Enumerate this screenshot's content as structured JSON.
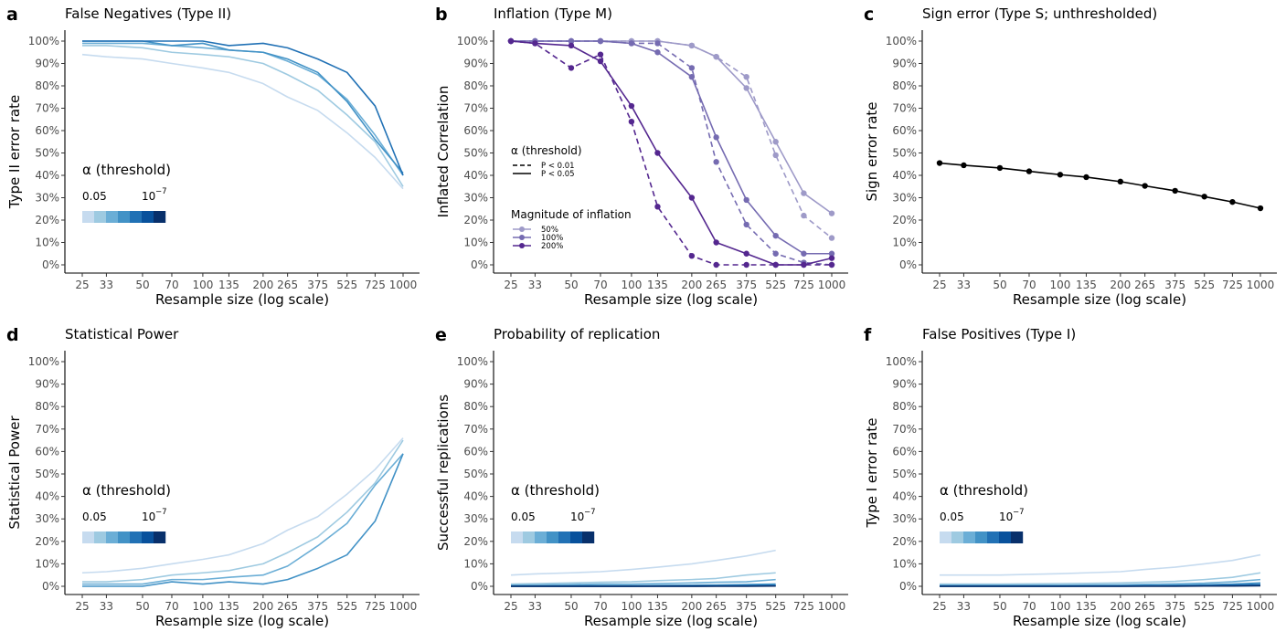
{
  "chart_data": [
    {
      "letter": "a",
      "type": "line",
      "title": "False Negatives (Type II)",
      "xlabel": "Resample size (log scale)",
      "ylabel": "Type II error rate",
      "x": [
        25,
        33,
        50,
        70,
        100,
        135,
        200,
        265,
        375,
        525,
        725,
        1000
      ],
      "x_scale": "log",
      "ylim": [
        0,
        100
      ],
      "ytick_labels": [
        "0%",
        "10%",
        "20%",
        "30%",
        "40%",
        "50%",
        "60%",
        "70%",
        "80%",
        "90%",
        "100%"
      ],
      "grid": false,
      "legend": {
        "kind": "alpha",
        "title": "α (threshold)",
        "left_label": "0.05",
        "right_label": "10",
        "right_exp": "−7",
        "placement": "lower-left"
      },
      "series": [
        {
          "color": "#c6dbef",
          "values": [
            94,
            93,
            92,
            90,
            88,
            86,
            81,
            75,
            69,
            59,
            48,
            34
          ]
        },
        {
          "color": "#9ecae1",
          "values": [
            98,
            98,
            97,
            95,
            94,
            93,
            90,
            85,
            78,
            67,
            55,
            35
          ]
        },
        {
          "color": "#6baed6",
          "values": [
            99,
            99,
            99,
            98,
            97,
            96,
            95,
            91,
            85,
            74,
            58,
            40
          ]
        },
        {
          "color": "#4292c6",
          "values": [
            100,
            100,
            100,
            98,
            99,
            96,
            95,
            92,
            86,
            73,
            56,
            41
          ]
        },
        {
          "color": "#2171b5",
          "values": [
            100,
            100,
            100,
            100,
            100,
            98,
            99,
            97,
            92,
            86,
            71,
            40
          ]
        }
      ]
    },
    {
      "letter": "b",
      "type": "line",
      "title": "Inflation (Type M)",
      "xlabel": "Resample size (log scale)",
      "ylabel": "Inflated Correlation",
      "x": [
        25,
        33,
        50,
        70,
        100,
        135,
        200,
        265,
        375,
        525,
        725,
        1000
      ],
      "x_scale": "log",
      "ylim": [
        0,
        100
      ],
      "ytick_labels": [
        "0%",
        "10%",
        "20%",
        "30%",
        "40%",
        "50%",
        "60%",
        "70%",
        "80%",
        "90%",
        "100%"
      ],
      "grid": false,
      "legend": {
        "kind": "inflation",
        "threshold_title": "α (threshold)",
        "threshold_items": [
          "P < 0.01",
          "P < 0.05"
        ],
        "magnitude_title": "Magnitude of inflation",
        "magnitude_items": [
          "50%",
          "100%",
          "200%"
        ]
      },
      "series": [
        {
          "name": "50%",
          "dash": "P < 0.05",
          "color": "#9e9ac8",
          "values": [
            100,
            100,
            100,
            100,
            100,
            100,
            98,
            93,
            79,
            55,
            32,
            23
          ]
        },
        {
          "name": "50%",
          "dash": "P < 0.01",
          "color": "#9e9ac8",
          "values": [
            100,
            100,
            100,
            100,
            100,
            100,
            98,
            93,
            84,
            49,
            22,
            12
          ]
        },
        {
          "name": "100%",
          "dash": "P < 0.05",
          "color": "#756bb1",
          "values": [
            100,
            100,
            100,
            100,
            99,
            95,
            84,
            57,
            29,
            13,
            5,
            5
          ]
        },
        {
          "name": "100%",
          "dash": "P < 0.01",
          "color": "#756bb1",
          "values": [
            100,
            100,
            100,
            100,
            99,
            99,
            88,
            46,
            18,
            5,
            1,
            0
          ]
        },
        {
          "name": "200%",
          "dash": "P < 0.05",
          "color": "#54278f",
          "values": [
            100,
            99,
            98,
            91,
            71,
            50,
            30,
            10,
            5,
            0,
            0,
            3
          ]
        },
        {
          "name": "200%",
          "dash": "P < 0.01",
          "color": "#54278f",
          "values": [
            100,
            99,
            88,
            94,
            64,
            26,
            4,
            0,
            0,
            0,
            0,
            0
          ]
        }
      ]
    },
    {
      "letter": "c",
      "type": "line",
      "title": "Sign error (Type S; unthresholded)",
      "xlabel": "Resample size (log scale)",
      "ylabel": "Sign error rate",
      "x": [
        25,
        33,
        50,
        70,
        100,
        135,
        200,
        265,
        375,
        525,
        725,
        1000
      ],
      "x_scale": "log",
      "ylim": [
        0,
        100
      ],
      "ytick_labels": [
        "0%",
        "10%",
        "20%",
        "30%",
        "40%",
        "50%",
        "60%",
        "70%",
        "80%",
        "90%",
        "100%"
      ],
      "grid": false,
      "series": [
        {
          "color": "#000000",
          "markers": true,
          "values": [
            45.5,
            44.5,
            43.3,
            41.8,
            40.3,
            39.2,
            37.2,
            35.3,
            33.1,
            30.5,
            28.1,
            25.3
          ]
        }
      ]
    },
    {
      "letter": "d",
      "type": "line",
      "title": "Statistical Power",
      "xlabel": "Resample size (log scale)",
      "ylabel": "Statistical Power",
      "x": [
        25,
        33,
        50,
        70,
        100,
        135,
        200,
        265,
        375,
        525,
        725,
        1000
      ],
      "x_scale": "log",
      "ylim": [
        0,
        100
      ],
      "ytick_labels": [
        "0%",
        "10%",
        "20%",
        "30%",
        "40%",
        "50%",
        "60%",
        "70%",
        "80%",
        "90%",
        "100%"
      ],
      "grid": false,
      "legend": {
        "kind": "alpha",
        "title": "α (threshold)",
        "left_label": "0.05",
        "right_label": "10",
        "right_exp": "−7",
        "placement": "lower-left"
      },
      "series": [
        {
          "color": "#c6dbef",
          "values": [
            6,
            6.5,
            8,
            10,
            12,
            14,
            19,
            25,
            31,
            41,
            52,
            66
          ]
        },
        {
          "color": "#9ecae1",
          "values": [
            2,
            2,
            3,
            5,
            6,
            7,
            10,
            15,
            22,
            33,
            46,
            65
          ]
        },
        {
          "color": "#6baed6",
          "values": [
            1,
            1,
            1,
            3,
            3,
            4,
            5,
            9,
            18,
            28,
            45,
            59
          ]
        },
        {
          "color": "#4292c6",
          "values": [
            0,
            0,
            0,
            2,
            1,
            2,
            1,
            3,
            8,
            14,
            29,
            59
          ]
        }
      ]
    },
    {
      "letter": "e",
      "type": "line",
      "title": "Probability of replication",
      "xlabel": "Resample size (log scale)",
      "ylabel": "Successful replications",
      "x": [
        25,
        33,
        50,
        70,
        100,
        135,
        200,
        265,
        375,
        525,
        725,
        1000
      ],
      "x_scale": "log",
      "ylim": [
        0,
        100
      ],
      "ytick_labels": [
        "0%",
        "10%",
        "20%",
        "30%",
        "40%",
        "50%",
        "60%",
        "70%",
        "80%",
        "90%",
        "100%"
      ],
      "grid": false,
      "legend": {
        "kind": "alpha",
        "title": "α (threshold)",
        "left_label": "0.05",
        "right_label": "10",
        "right_exp": "−7",
        "placement": "lower-left"
      },
      "series": [
        {
          "color": "#c6dbef",
          "values": [
            5,
            5.5,
            6,
            6.5,
            7.5,
            8.5,
            10,
            11.5,
            13.5,
            16,
            null,
            null
          ]
        },
        {
          "color": "#9ecae1",
          "values": [
            1,
            1.2,
            1.5,
            1.8,
            2,
            2.5,
            3,
            3.5,
            5,
            6,
            null,
            null
          ]
        },
        {
          "color": "#6baed6",
          "values": [
            0.5,
            0.6,
            0.8,
            1,
            1,
            1.2,
            1.5,
            1.8,
            2,
            3,
            null,
            null
          ]
        },
        {
          "color": "#4292c6",
          "values": [
            0.2,
            0.2,
            0.3,
            0.3,
            0.3,
            0.4,
            0.5,
            0.6,
            0.8,
            1,
            null,
            null
          ]
        },
        {
          "color": "#2171b5",
          "values": [
            0,
            0,
            0,
            0,
            0,
            0.1,
            0.2,
            0.2,
            0.3,
            0.4,
            null,
            null
          ]
        },
        {
          "color": "#08519c",
          "values": [
            0,
            0,
            0,
            0,
            0,
            0,
            0,
            0.1,
            0.1,
            0.2,
            null,
            null
          ]
        },
        {
          "color": "#08306b",
          "values": [
            0,
            0,
            0,
            0,
            0,
            0,
            0,
            0,
            0,
            0.1,
            null,
            null
          ]
        }
      ]
    },
    {
      "letter": "f",
      "type": "line",
      "title": "False Positives (Type I)",
      "xlabel": "Resample size (log scale)",
      "ylabel": "Type I error rate",
      "x": [
        25,
        33,
        50,
        70,
        100,
        135,
        200,
        265,
        375,
        525,
        725,
        1000
      ],
      "x_scale": "log",
      "ylim": [
        0,
        100
      ],
      "ytick_labels": [
        "0%",
        "10%",
        "20%",
        "30%",
        "40%",
        "50%",
        "60%",
        "70%",
        "80%",
        "90%",
        "100%"
      ],
      "grid": false,
      "legend": {
        "kind": "alpha",
        "title": "α (threshold)",
        "left_label": "0.05",
        "right_label": "10",
        "right_exp": "−7",
        "placement": "lower-left"
      },
      "series": [
        {
          "color": "#c6dbef",
          "values": [
            5,
            5,
            5,
            5.3,
            5.6,
            6,
            6.5,
            7.5,
            8.5,
            10,
            11.5,
            14
          ]
        },
        {
          "color": "#9ecae1",
          "values": [
            1,
            1,
            1,
            1.1,
            1.2,
            1.3,
            1.5,
            1.8,
            2.2,
            3,
            4,
            6
          ]
        },
        {
          "color": "#6baed6",
          "values": [
            0.5,
            0.5,
            0.5,
            0.5,
            0.5,
            0.6,
            0.7,
            0.9,
            1.1,
            1.4,
            2,
            3
          ]
        },
        {
          "color": "#4292c6",
          "values": [
            0.2,
            0.2,
            0.2,
            0.2,
            0.2,
            0.3,
            0.3,
            0.4,
            0.5,
            0.7,
            1,
            1.5
          ]
        },
        {
          "color": "#2171b5",
          "values": [
            0,
            0,
            0,
            0,
            0,
            0.1,
            0.1,
            0.2,
            0.2,
            0.3,
            0.5,
            0.8
          ]
        },
        {
          "color": "#08519c",
          "values": [
            0,
            0,
            0,
            0,
            0,
            0,
            0,
            0.1,
            0.1,
            0.2,
            0.3,
            0.4
          ]
        },
        {
          "color": "#08306b",
          "values": [
            0,
            0,
            0,
            0,
            0,
            0,
            0,
            0,
            0,
            0.1,
            0.1,
            0.2
          ]
        }
      ]
    }
  ],
  "alpha_palette": [
    "#c6dbef",
    "#9ecae1",
    "#6baed6",
    "#4292c6",
    "#2171b5",
    "#08519c",
    "#08306b"
  ],
  "xtick_labels": [
    "25",
    "33",
    "50",
    "70",
    "100",
    "135",
    "200",
    "265",
    "375",
    "525",
    "725",
    "1000"
  ]
}
